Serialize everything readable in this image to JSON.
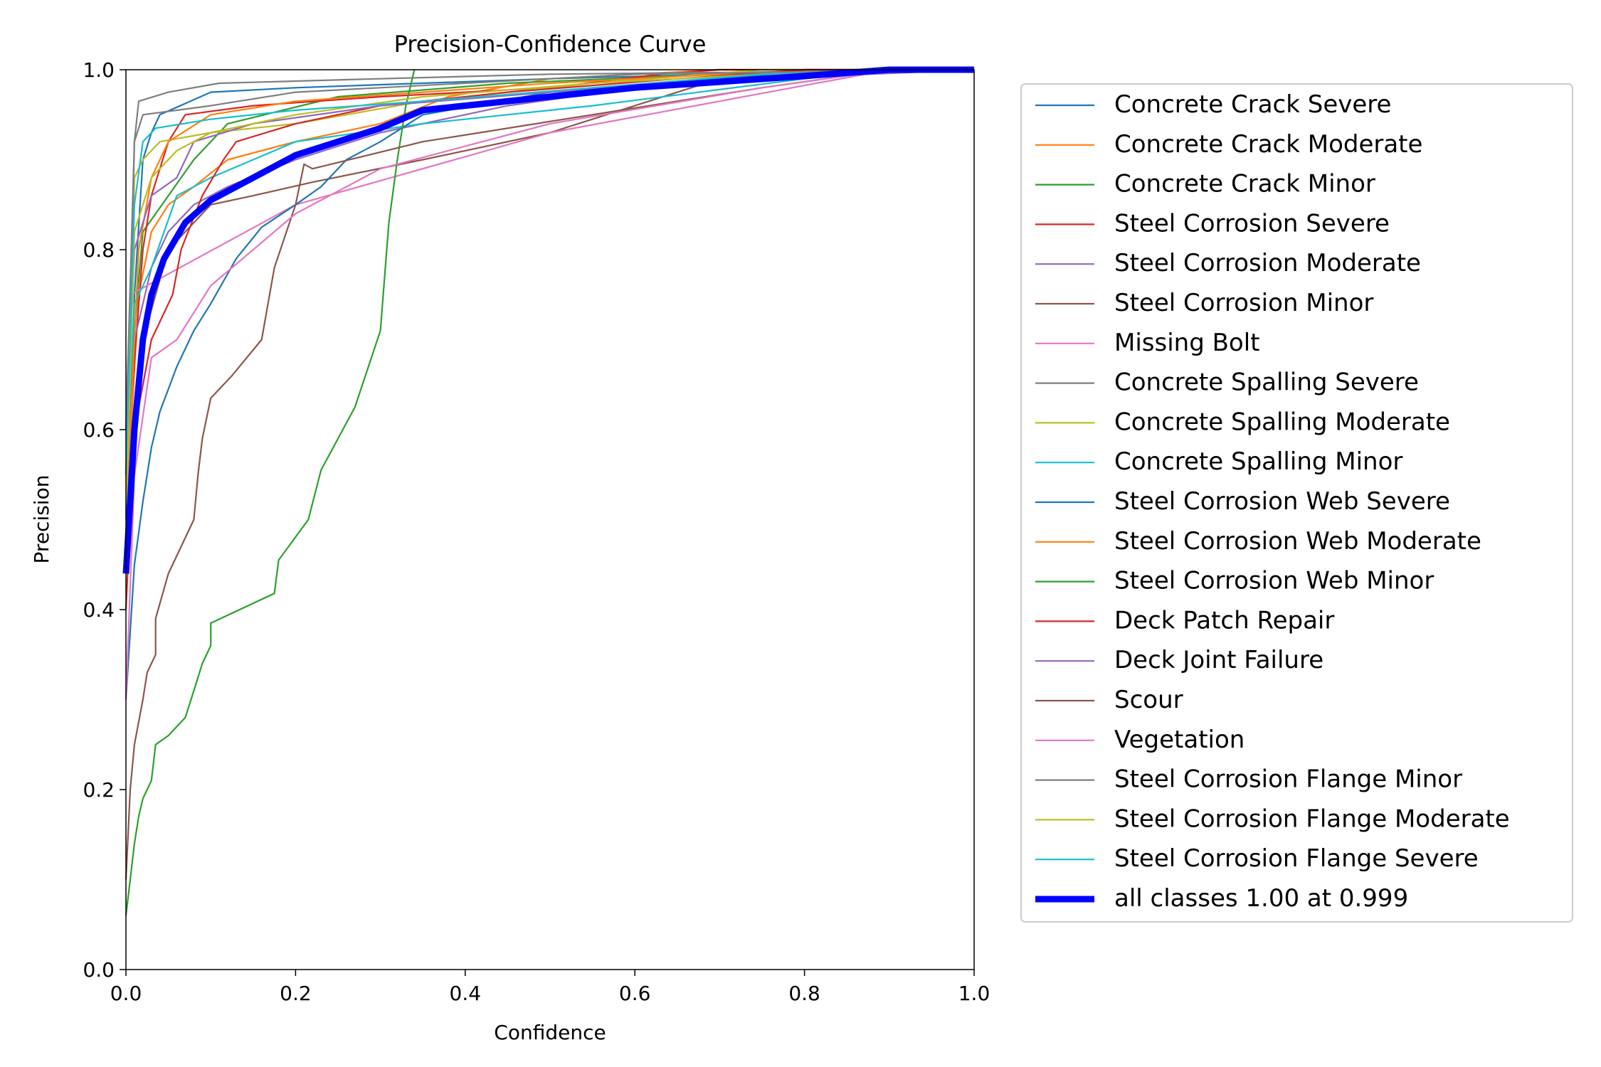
{
  "chart_data": {
    "type": "line",
    "title": "Precision-Confidence Curve",
    "xlabel": "Confidence",
    "ylabel": "Precision",
    "xlim": [
      0,
      1
    ],
    "ylim": [
      0,
      1
    ],
    "x_ticks": [
      "0.0",
      "0.2",
      "0.4",
      "0.6",
      "0.8",
      "1.0"
    ],
    "y_ticks": [
      "0.0",
      "0.2",
      "0.4",
      "0.6",
      "0.8",
      "1.0"
    ],
    "grid": false,
    "legend_position": "outside-right",
    "series": [
      {
        "name": "Concrete Crack Severe",
        "color": "#1f77b4",
        "points": [
          [
            0,
            0.45
          ],
          [
            0.01,
            0.75
          ],
          [
            0.02,
            0.9
          ],
          [
            0.03,
            0.93
          ],
          [
            0.04,
            0.95
          ],
          [
            0.1,
            0.975
          ],
          [
            0.2,
            0.98
          ],
          [
            0.5,
            0.99
          ],
          [
            0.7,
            0.995
          ],
          [
            1.0,
            1.0
          ]
        ]
      },
      {
        "name": "Concrete Crack Moderate",
        "color": "#ff7f0e",
        "points": [
          [
            0,
            0.5
          ],
          [
            0.015,
            0.75
          ],
          [
            0.03,
            0.82
          ],
          [
            0.05,
            0.85
          ],
          [
            0.08,
            0.87
          ],
          [
            0.12,
            0.9
          ],
          [
            0.2,
            0.92
          ],
          [
            0.3,
            0.94
          ],
          [
            0.38,
            0.97
          ],
          [
            0.5,
            0.99
          ],
          [
            0.7,
            1.0
          ],
          [
            1.0,
            1.0
          ]
        ]
      },
      {
        "name": "Concrete Crack Minor",
        "color": "#2ca02c",
        "points": [
          [
            0,
            0.6
          ],
          [
            0.02,
            0.82
          ],
          [
            0.05,
            0.86
          ],
          [
            0.08,
            0.9
          ],
          [
            0.12,
            0.94
          ],
          [
            0.25,
            0.97
          ],
          [
            0.45,
            0.985
          ],
          [
            0.7,
            0.995
          ],
          [
            1.0,
            1.0
          ]
        ]
      },
      {
        "name": "Steel Corrosion Severe",
        "color": "#d62728",
        "points": [
          [
            0,
            0.55
          ],
          [
            0.02,
            0.8
          ],
          [
            0.03,
            0.86
          ],
          [
            0.05,
            0.92
          ],
          [
            0.07,
            0.95
          ],
          [
            0.15,
            0.96
          ],
          [
            0.3,
            0.97
          ],
          [
            0.5,
            0.98
          ],
          [
            0.63,
            0.995
          ],
          [
            0.7,
            1.0
          ],
          [
            1.0,
            1.0
          ]
        ]
      },
      {
        "name": "Steel Corrosion Moderate",
        "color": "#9467bd",
        "points": [
          [
            0,
            0.5
          ],
          [
            0.01,
            0.7
          ],
          [
            0.03,
            0.78
          ],
          [
            0.05,
            0.82
          ],
          [
            0.08,
            0.85
          ],
          [
            0.12,
            0.87
          ],
          [
            0.2,
            0.9
          ],
          [
            0.3,
            0.93
          ],
          [
            0.45,
            0.96
          ],
          [
            0.6,
            0.98
          ],
          [
            0.8,
            1.0
          ],
          [
            1.0,
            1.0
          ]
        ]
      },
      {
        "name": "Steel Corrosion Minor",
        "color": "#8c564b",
        "points": [
          [
            0,
            0.45
          ],
          [
            0.02,
            0.7
          ],
          [
            0.05,
            0.8
          ],
          [
            0.1,
            0.85
          ],
          [
            0.15,
            0.86
          ],
          [
            0.22,
            0.875
          ],
          [
            0.35,
            0.9
          ],
          [
            0.5,
            0.93
          ],
          [
            0.6,
            0.96
          ],
          [
            0.7,
            0.99
          ],
          [
            0.8,
            1.0
          ],
          [
            1.0,
            1.0
          ]
        ]
      },
      {
        "name": "Missing Bolt",
        "color": "#e377c2",
        "points": [
          [
            0,
            0.5
          ],
          [
            0.005,
            0.75
          ],
          [
            0.2,
            0.85
          ],
          [
            0.5,
            0.93
          ],
          [
            0.9,
            1.0
          ],
          [
            1.0,
            1.0
          ]
        ]
      },
      {
        "name": "Concrete Spalling Severe",
        "color": "#7f7f7f",
        "points": [
          [
            0,
            0.6
          ],
          [
            0.01,
            0.92
          ],
          [
            0.015,
            0.965
          ],
          [
            0.05,
            0.975
          ],
          [
            0.11,
            0.985
          ],
          [
            0.3,
            0.99
          ],
          [
            0.5,
            0.995
          ],
          [
            1.0,
            1.0
          ]
        ]
      },
      {
        "name": "Concrete Spalling Moderate",
        "color": "#bcbd22",
        "points": [
          [
            0,
            0.55
          ],
          [
            0.01,
            0.88
          ],
          [
            0.02,
            0.9
          ],
          [
            0.04,
            0.92
          ],
          [
            0.1,
            0.93
          ],
          [
            0.2,
            0.94
          ],
          [
            0.35,
            0.965
          ],
          [
            0.55,
            0.985
          ],
          [
            0.75,
            1.0
          ],
          [
            1.0,
            1.0
          ]
        ]
      },
      {
        "name": "Concrete Spalling Minor",
        "color": "#17becf",
        "points": [
          [
            0,
            0.55
          ],
          [
            0.01,
            0.74
          ],
          [
            0.03,
            0.78
          ],
          [
            0.06,
            0.86
          ],
          [
            0.1,
            0.88
          ],
          [
            0.15,
            0.9
          ],
          [
            0.2,
            0.92
          ],
          [
            0.35,
            0.94
          ],
          [
            0.55,
            0.96
          ],
          [
            0.8,
            0.99
          ],
          [
            0.9,
            1.0
          ],
          [
            1.0,
            1.0
          ]
        ]
      },
      {
        "name": "Steel Corrosion Web Severe",
        "color": "#1f77b4",
        "points": [
          [
            0,
            0.3
          ],
          [
            0.01,
            0.45
          ],
          [
            0.02,
            0.52
          ],
          [
            0.03,
            0.58
          ],
          [
            0.04,
            0.62
          ],
          [
            0.06,
            0.67
          ],
          [
            0.08,
            0.71
          ],
          [
            0.1,
            0.74
          ],
          [
            0.13,
            0.79
          ],
          [
            0.16,
            0.825
          ],
          [
            0.2,
            0.85
          ],
          [
            0.23,
            0.87
          ],
          [
            0.26,
            0.9
          ],
          [
            0.3,
            0.92
          ],
          [
            0.35,
            0.95
          ],
          [
            0.5,
            0.975
          ],
          [
            0.7,
            0.99
          ],
          [
            0.85,
            1.0
          ],
          [
            1.0,
            1.0
          ]
        ]
      },
      {
        "name": "Steel Corrosion Web Moderate",
        "color": "#ff7f0e",
        "points": [
          [
            0,
            0.5
          ],
          [
            0.015,
            0.8
          ],
          [
            0.03,
            0.88
          ],
          [
            0.05,
            0.92
          ],
          [
            0.1,
            0.95
          ],
          [
            0.2,
            0.965
          ],
          [
            0.35,
            0.975
          ],
          [
            0.5,
            0.985
          ],
          [
            0.7,
            0.995
          ],
          [
            1.0,
            1.0
          ]
        ]
      },
      {
        "name": "Steel Corrosion Web Minor",
        "color": "#2ca02c",
        "points": [
          [
            0,
            0.06
          ],
          [
            0.005,
            0.1
          ],
          [
            0.01,
            0.14
          ],
          [
            0.015,
            0.17
          ],
          [
            0.02,
            0.19
          ],
          [
            0.03,
            0.21
          ],
          [
            0.035,
            0.25
          ],
          [
            0.05,
            0.26
          ],
          [
            0.07,
            0.28
          ],
          [
            0.08,
            0.31
          ],
          [
            0.09,
            0.34
          ],
          [
            0.1,
            0.36
          ],
          [
            0.1,
            0.385
          ],
          [
            0.175,
            0.418
          ],
          [
            0.18,
            0.455
          ],
          [
            0.215,
            0.5
          ],
          [
            0.23,
            0.555
          ],
          [
            0.27,
            0.625
          ],
          [
            0.3,
            0.71
          ],
          [
            0.31,
            0.83
          ],
          [
            0.32,
            0.9
          ],
          [
            0.33,
            0.96
          ],
          [
            0.34,
            1.0
          ]
        ]
      },
      {
        "name": "Deck Patch Repair",
        "color": "#d62728",
        "points": [
          [
            0,
            0.4
          ],
          [
            0.01,
            0.6
          ],
          [
            0.03,
            0.7
          ],
          [
            0.055,
            0.75
          ],
          [
            0.065,
            0.8
          ],
          [
            0.09,
            0.86
          ],
          [
            0.115,
            0.9
          ],
          [
            0.13,
            0.92
          ],
          [
            0.2,
            0.94
          ],
          [
            0.3,
            0.96
          ],
          [
            0.45,
            0.975
          ],
          [
            0.65,
            0.99
          ],
          [
            0.8,
            1.0
          ],
          [
            1.0,
            1.0
          ]
        ]
      },
      {
        "name": "Deck Joint Failure",
        "color": "#9467bd",
        "points": [
          [
            0,
            0.6
          ],
          [
            0.01,
            0.8
          ],
          [
            0.03,
            0.86
          ],
          [
            0.06,
            0.88
          ],
          [
            0.08,
            0.92
          ],
          [
            0.15,
            0.94
          ],
          [
            0.3,
            0.96
          ],
          [
            0.5,
            0.975
          ],
          [
            0.75,
            0.99
          ],
          [
            1.0,
            1.0
          ]
        ]
      },
      {
        "name": "Scour",
        "color": "#8c564b",
        "points": [
          [
            0,
            0.1
          ],
          [
            0.005,
            0.2
          ],
          [
            0.01,
            0.25
          ],
          [
            0.02,
            0.3
          ],
          [
            0.025,
            0.33
          ],
          [
            0.035,
            0.35
          ],
          [
            0.035,
            0.39
          ],
          [
            0.05,
            0.44
          ],
          [
            0.065,
            0.47
          ],
          [
            0.08,
            0.5
          ],
          [
            0.085,
            0.55
          ],
          [
            0.09,
            0.59
          ],
          [
            0.1,
            0.635
          ],
          [
            0.125,
            0.66
          ],
          [
            0.16,
            0.7
          ],
          [
            0.175,
            0.78
          ],
          [
            0.2,
            0.85
          ],
          [
            0.21,
            0.895
          ],
          [
            0.22,
            0.89
          ],
          [
            0.35,
            0.92
          ],
          [
            0.55,
            0.95
          ],
          [
            0.75,
            0.98
          ],
          [
            0.9,
            1.0
          ],
          [
            1.0,
            1.0
          ]
        ]
      },
      {
        "name": "Vegetation",
        "color": "#e377c2",
        "points": [
          [
            0,
            0.3
          ],
          [
            0.01,
            0.55
          ],
          [
            0.03,
            0.68
          ],
          [
            0.06,
            0.7
          ],
          [
            0.1,
            0.76
          ],
          [
            0.2,
            0.84
          ],
          [
            0.3,
            0.89
          ],
          [
            0.5,
            0.94
          ],
          [
            0.75,
            0.98
          ],
          [
            0.9,
            1.0
          ],
          [
            1.0,
            1.0
          ]
        ]
      },
      {
        "name": "Steel Corrosion Flange Minor",
        "color": "#7f7f7f",
        "points": [
          [
            0,
            0.5
          ],
          [
            0.01,
            0.92
          ],
          [
            0.02,
            0.95
          ],
          [
            0.1,
            0.96
          ],
          [
            0.2,
            0.975
          ],
          [
            0.4,
            0.985
          ],
          [
            0.6,
            0.995
          ],
          [
            1.0,
            1.0
          ]
        ]
      },
      {
        "name": "Steel Corrosion Flange Moderate",
        "color": "#bcbd22",
        "points": [
          [
            0,
            0.5
          ],
          [
            0.01,
            0.82
          ],
          [
            0.03,
            0.88
          ],
          [
            0.06,
            0.91
          ],
          [
            0.1,
            0.93
          ],
          [
            0.2,
            0.95
          ],
          [
            0.35,
            0.97
          ],
          [
            0.55,
            0.985
          ],
          [
            0.75,
            0.995
          ],
          [
            1.0,
            1.0
          ]
        ]
      },
      {
        "name": "Steel Corrosion Flange Severe",
        "color": "#17becf",
        "points": [
          [
            0,
            0.55
          ],
          [
            0.01,
            0.85
          ],
          [
            0.02,
            0.92
          ],
          [
            0.035,
            0.935
          ],
          [
            0.1,
            0.945
          ],
          [
            0.2,
            0.955
          ],
          [
            0.35,
            0.965
          ],
          [
            0.55,
            0.98
          ],
          [
            0.75,
            0.995
          ],
          [
            1.0,
            1.0
          ]
        ]
      },
      {
        "name": "all classes 1.00 at 0.999",
        "color": "#0000ff",
        "bold": true,
        "points": [
          [
            0,
            0.44
          ],
          [
            0.01,
            0.6
          ],
          [
            0.02,
            0.7
          ],
          [
            0.03,
            0.75
          ],
          [
            0.045,
            0.79
          ],
          [
            0.07,
            0.83
          ],
          [
            0.1,
            0.855
          ],
          [
            0.15,
            0.88
          ],
          [
            0.2,
            0.905
          ],
          [
            0.25,
            0.92
          ],
          [
            0.3,
            0.935
          ],
          [
            0.35,
            0.955
          ],
          [
            0.45,
            0.965
          ],
          [
            0.6,
            0.98
          ],
          [
            0.8,
            0.993
          ],
          [
            0.9,
            1.0
          ],
          [
            1.0,
            1.0
          ]
        ]
      }
    ]
  }
}
